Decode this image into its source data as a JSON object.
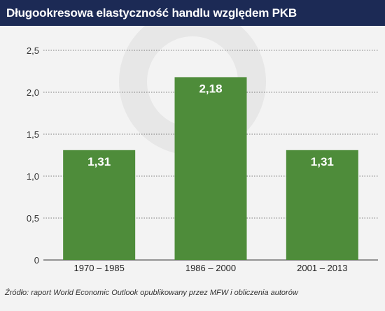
{
  "header": {
    "title": "Długookresowa elastyczność handlu względem PKB"
  },
  "chart_data": {
    "type": "bar",
    "title": "Długookresowa elastyczność handlu względem PKB",
    "xlabel": "",
    "ylabel": "",
    "categories": [
      "1970 – 1985",
      "1986 – 2000",
      "2001 – 2013"
    ],
    "values": [
      1.31,
      2.18,
      1.31
    ],
    "value_labels": [
      "1,31",
      "2,18",
      "1,31"
    ],
    "ylim": [
      0,
      2.5
    ],
    "yticks": [
      0,
      0.5,
      1.0,
      1.5,
      2.0,
      2.5
    ],
    "ytick_labels": [
      "0",
      "0,5",
      "1,0",
      "1,5",
      "2,0",
      "2,5"
    ],
    "grid": true,
    "legend": "none",
    "bar_color": "#4e8c3a",
    "label_color": "#ffffff"
  },
  "footer": {
    "source": "Źródło: raport World Economic Outlook opublikowany przez MFW i obliczenia autorów"
  },
  "colors": {
    "header_bg": "#1c2a55",
    "background": "#f3f3f3",
    "bar": "#4e8c3a"
  }
}
